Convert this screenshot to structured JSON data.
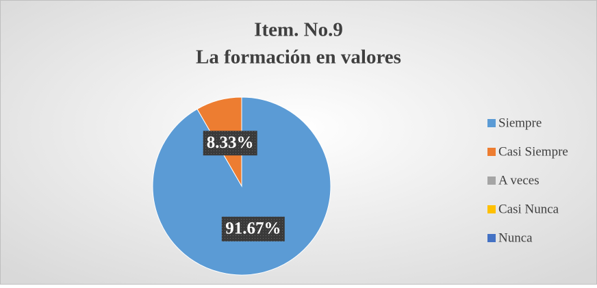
{
  "chart_data": {
    "type": "pie",
    "title": "Item. No.9",
    "subtitle": "La formación en valores",
    "categories": [
      "Siempre",
      "Casi Siempre",
      "A veces",
      "Casi Nunca",
      "Nunca"
    ],
    "values": [
      91.67,
      8.33,
      0,
      0,
      0
    ],
    "value_labels": [
      "91.67%",
      "8.33%",
      null,
      null,
      null
    ],
    "colors": [
      "#5b9bd5",
      "#ed7d31",
      "#a5a5a5",
      "#ffc000",
      "#4472c4"
    ],
    "legend": "right"
  }
}
